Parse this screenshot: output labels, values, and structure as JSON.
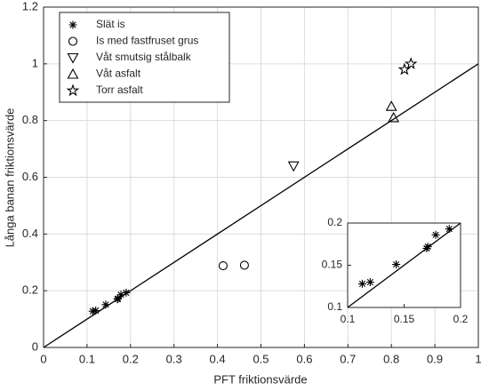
{
  "chart_data": [
    {
      "type": "scatter",
      "xlabel": "PFT friktionsvärde",
      "ylabel": "Långa banan friktionsvärde",
      "xlim": [
        0,
        1
      ],
      "ylim": [
        0,
        1.2
      ],
      "xticks": [
        0,
        0.1,
        0.2,
        0.3,
        0.4,
        0.5,
        0.6,
        0.7,
        0.8,
        0.9,
        1
      ],
      "yticks": [
        0,
        0.2,
        0.4,
        0.6,
        0.8,
        1,
        1.2
      ],
      "grid": true,
      "legend": "upper left",
      "series": [
        {
          "name": "Slät is",
          "marker": "asterisk",
          "color": "#000000",
          "x": [
            0.113,
            0.12,
            0.143,
            0.17,
            0.171,
            0.178,
            0.19
          ],
          "values": [
            0.128,
            0.13,
            0.151,
            0.17,
            0.172,
            0.186,
            0.193
          ]
        },
        {
          "name": "Is med fastfruset grus",
          "marker": "circle",
          "color": "#000000",
          "x": [
            0.413,
            0.462
          ],
          "values": [
            0.288,
            0.29
          ]
        },
        {
          "name": "Våt smutsig stålbalk",
          "marker": "triangle-down",
          "color": "#000000",
          "x": [
            0.575
          ],
          "values": [
            0.64
          ]
        },
        {
          "name": "Våt asfalt",
          "marker": "triangle-up",
          "color": "#000000",
          "x": [
            0.8,
            0.805
          ],
          "values": [
            0.85,
            0.81
          ]
        },
        {
          "name": "Torr asfalt",
          "marker": "star",
          "color": "#000000",
          "x": [
            0.83,
            0.845
          ],
          "values": [
            0.98,
            1.0
          ]
        }
      ],
      "lines": [
        {
          "x": [
            0,
            1
          ],
          "values": [
            0,
            1
          ],
          "color": "#000000"
        }
      ]
    },
    {
      "type": "scatter",
      "xlim": [
        0.1,
        0.2
      ],
      "ylim": [
        0.1,
        0.2
      ],
      "xticks": [
        0.1,
        0.15,
        0.2
      ],
      "yticks": [
        0.1,
        0.15,
        0.2
      ],
      "grid": false,
      "series": [
        {
          "marker": "asterisk",
          "color": "#000000",
          "x": [
            0.113,
            0.12,
            0.143,
            0.17,
            0.171,
            0.178,
            0.19
          ],
          "values": [
            0.128,
            0.13,
            0.151,
            0.17,
            0.172,
            0.186,
            0.193
          ]
        }
      ],
      "lines": [
        {
          "x": [
            0.1,
            0.2
          ],
          "values": [
            0.1,
            0.2
          ],
          "color": "#000000"
        }
      ]
    }
  ]
}
